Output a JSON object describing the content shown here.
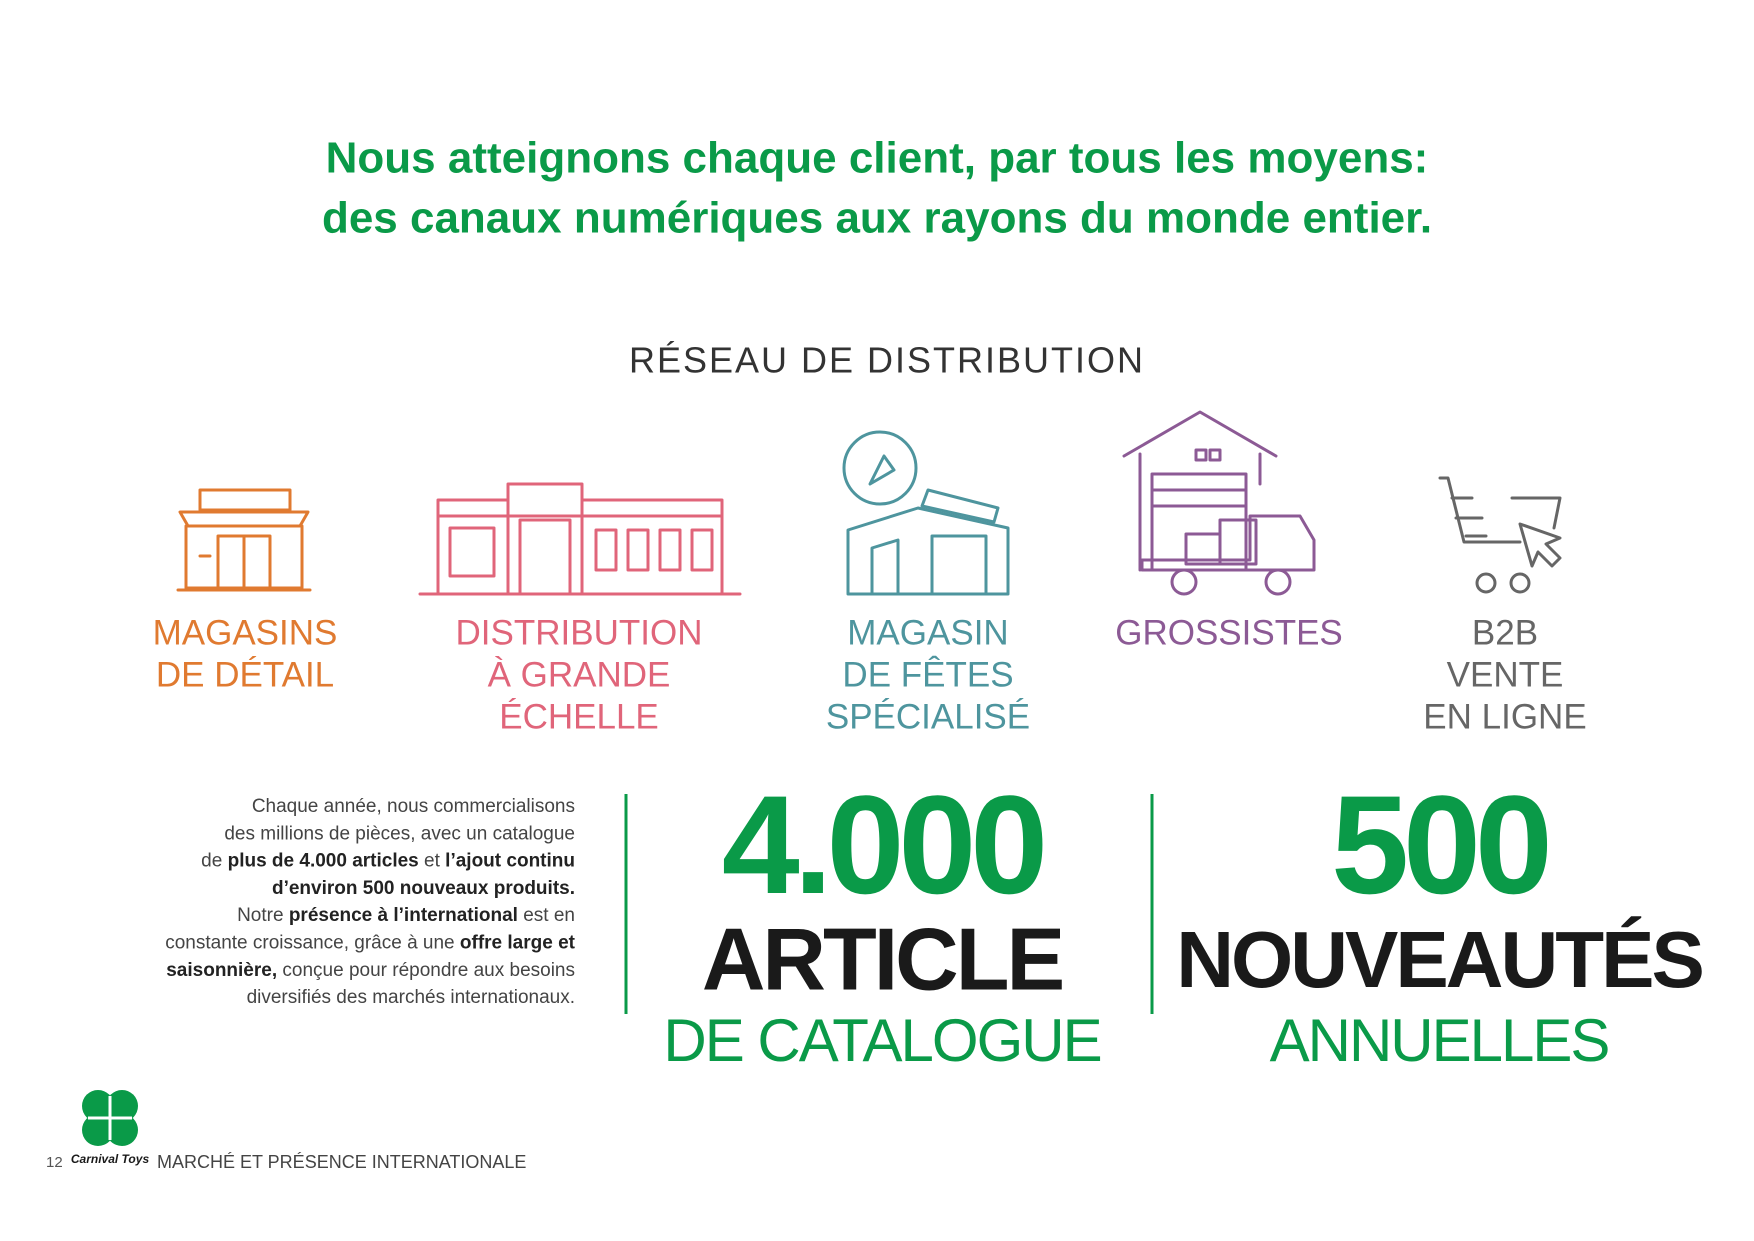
{
  "header": {
    "title_lines": [
      "Nous atteignons chaque client, par tous les moyens:",
      "des canaux numériques aux rayons du monde entier."
    ]
  },
  "section_title": "RÉSEAU DE DISTRIBUTION",
  "channels": [
    {
      "lines": [
        "MAGASINS",
        "DE DÉTAIL"
      ],
      "color": "#e07a30"
    },
    {
      "lines": [
        "DISTRIBUTION",
        "À GRANDE",
        "ÉCHELLE"
      ],
      "color": "#e0657a"
    },
    {
      "lines": [
        "MAGASIN",
        "DE FÊTES",
        "SPÉCIALISÉ"
      ],
      "color": "#4e959e"
    },
    {
      "lines": [
        "GROSSISTES"
      ],
      "color": "#8c5a95"
    },
    {
      "lines": [
        "B2B",
        "VENTE",
        "EN LIGNE"
      ],
      "color": "#666666"
    }
  ],
  "paragraph": [
    [
      {
        "text": "Chaque année, nous commercialisons",
        "bold": false
      }
    ],
    [
      {
        "text": "des millions de pièces, avec un catalogue",
        "bold": false
      }
    ],
    [
      {
        "text": "de ",
        "bold": false
      },
      {
        "text": "plus de 4.000 articles",
        "bold": true
      },
      {
        "text": " et ",
        "bold": false
      },
      {
        "text": "l’ajout continu",
        "bold": true
      }
    ],
    [
      {
        "text": "d’environ 500 nouveaux produits.",
        "bold": true
      }
    ],
    [
      {
        "text": "Notre ",
        "bold": false
      },
      {
        "text": "présence à l’international",
        "bold": true
      },
      {
        "text": " est en",
        "bold": false
      }
    ],
    [
      {
        "text": "constante croissance, grâce à une ",
        "bold": false
      },
      {
        "text": "offre large et",
        "bold": true
      }
    ],
    [
      {
        "text": "saisonnière,",
        "bold": true
      },
      {
        "text": " conçue pour répondre aux besoins",
        "bold": false
      }
    ],
    [
      {
        "text": "diversifiés des marchés internationaux.",
        "bold": false
      }
    ]
  ],
  "stats": [
    {
      "number": "4.000",
      "line1": "ARTICLE",
      "line2": "DE CATALOGUE"
    },
    {
      "number": "500",
      "line1": "NOUVEAUTÉS",
      "line2": "ANNUELLES"
    }
  ],
  "footer": {
    "page": "12",
    "text": "MARCHÉ ET PRÉSENCE INTERNATIONALE",
    "logo": "Carnival Toys"
  }
}
